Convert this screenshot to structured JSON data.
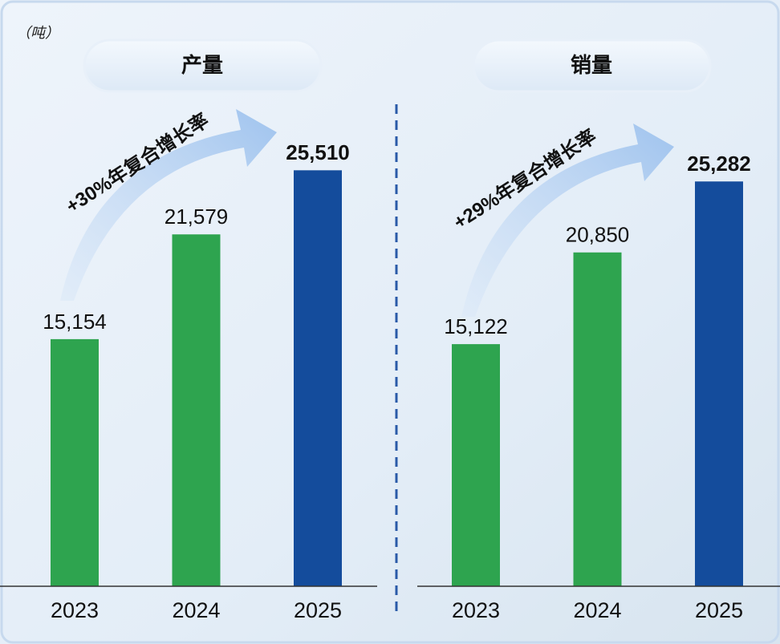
{
  "unit": "（吨）",
  "chart_data": [
    {
      "type": "bar",
      "title": "产量",
      "categories": [
        "2023",
        "2024",
        "2025"
      ],
      "values": [
        15154,
        21579,
        25510
      ],
      "value_labels": [
        "15,154",
        "21,579",
        "25,510"
      ],
      "colors": [
        "#2ea44f",
        "#2ea44f",
        "#144c9c"
      ],
      "ylim": [
        0,
        27100
      ],
      "annotation": "+30%年复合增长率"
    },
    {
      "type": "bar",
      "title": "销量",
      "categories": [
        "2023",
        "2024",
        "2025"
      ],
      "values": [
        15122,
        20850,
        25282
      ],
      "value_labels": [
        "15,122",
        "20,850",
        "25,282"
      ],
      "colors": [
        "#2ea44f",
        "#2ea44f",
        "#144c9c"
      ],
      "ylim": [
        0,
        27600
      ],
      "annotation": "+29%年复合增长率"
    }
  ]
}
